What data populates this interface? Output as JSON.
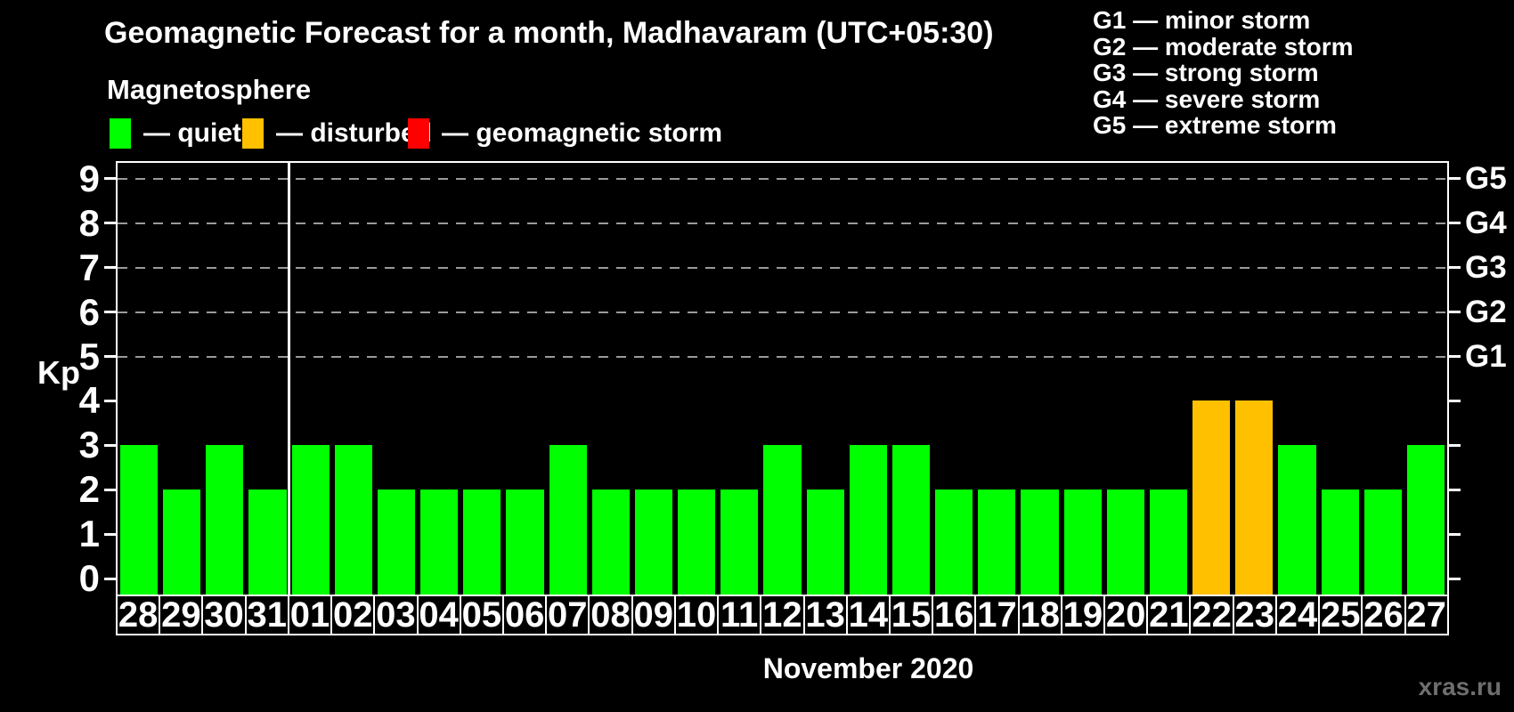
{
  "title": "Geomagnetic Forecast for a month, Madhavaram (UTC+05:30)",
  "subtitle": "Magnetosphere",
  "legend": {
    "items": [
      {
        "label": "— quiet",
        "color": "#00ff00"
      },
      {
        "label": "— disturbed",
        "color": "#ffc000"
      },
      {
        "label": "— geomagnetic storm",
        "color": "#ff0000"
      }
    ]
  },
  "storm_scale": {
    "items": [
      {
        "label": "G1 — minor storm"
      },
      {
        "label": "G2 — moderate storm"
      },
      {
        "label": "G3 — strong storm"
      },
      {
        "label": "G4 — severe storm"
      },
      {
        "label": "G5 — extreme storm"
      }
    ]
  },
  "chart_data": {
    "type": "bar",
    "title": "Geomagnetic Forecast for a month, Madhavaram (UTC+05:30)",
    "xlabel": "November 2020",
    "ylabel": "Kp",
    "ylim": [
      0,
      9
    ],
    "y_ticks": [
      0,
      1,
      2,
      3,
      4,
      5,
      6,
      7,
      8,
      9
    ],
    "grid_kp": [
      5,
      6,
      7,
      8,
      9
    ],
    "right_axis": {
      "labels": [
        "G1",
        "G2",
        "G3",
        "G4",
        "G5"
      ],
      "at_kp": [
        5,
        6,
        7,
        8,
        9
      ]
    },
    "categories": [
      "28",
      "29",
      "30",
      "31",
      "01",
      "02",
      "03",
      "04",
      "05",
      "06",
      "07",
      "08",
      "09",
      "10",
      "11",
      "12",
      "13",
      "14",
      "15",
      "16",
      "17",
      "18",
      "19",
      "20",
      "21",
      "22",
      "23",
      "24",
      "25",
      "26",
      "27"
    ],
    "values": [
      3,
      2,
      3,
      2,
      3,
      3,
      2,
      2,
      2,
      2,
      3,
      2,
      2,
      2,
      2,
      3,
      2,
      3,
      3,
      2,
      2,
      2,
      2,
      2,
      2,
      4,
      4,
      3,
      2,
      2,
      3
    ],
    "month_separator_after_index": 3,
    "status_colors": {
      "quiet": "#00ff00",
      "disturbed": "#ffc000",
      "storm": "#ff0000"
    },
    "thresholds": {
      "quiet_max_kp": 3,
      "disturbed_max_kp": 4
    },
    "legend_position": "top",
    "grid": "dashed horizontal at G-storm levels only"
  },
  "footer": {
    "month_label": "November 2020",
    "watermark": "xras.ru"
  }
}
